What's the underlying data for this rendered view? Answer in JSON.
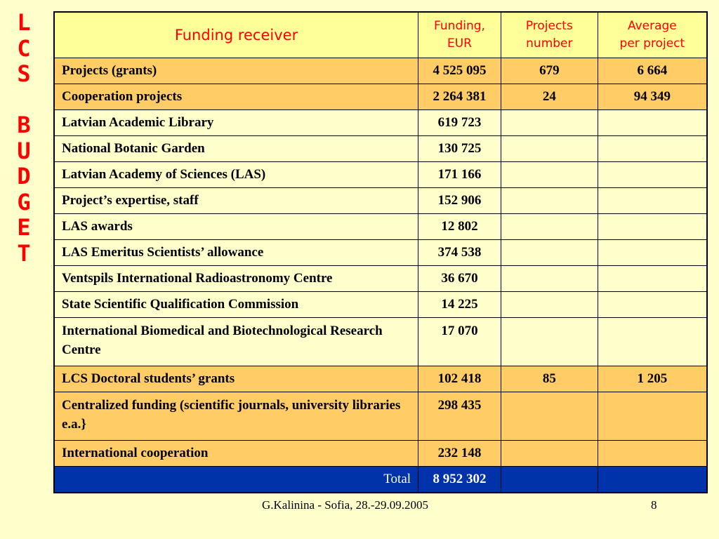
{
  "side_title": [
    "L",
    "C",
    "S",
    "",
    "B",
    "U",
    "D",
    "G",
    "E",
    "T"
  ],
  "table": {
    "headers": {
      "receiver": "Funding receiver",
      "funding_line1": "Funding,",
      "funding_line2": "EUR",
      "projects_line1": "Projects",
      "projects_line2": "number",
      "average_line1": "Average",
      "average_line2": "per project"
    },
    "rows": [
      {
        "name": "Projects (grants)",
        "funding": "4 525 095",
        "projects": "679",
        "average": "6 664"
      },
      {
        "name": "Cooperation projects",
        "funding": "2 264 381",
        "projects": "24",
        "average": "94 349"
      },
      {
        "name": "Latvian Academic Library",
        "funding": "619 723",
        "projects": "",
        "average": ""
      },
      {
        "name": "National Botanic Garden",
        "funding": "130 725",
        "projects": "",
        "average": ""
      },
      {
        "name": "Latvian Academy of Sciences (LAS)",
        "funding": "171 166",
        "projects": "",
        "average": ""
      },
      {
        "name": "Project’s expertise, staff",
        "funding": "152 906",
        "projects": "",
        "average": ""
      },
      {
        "name": "LAS awards",
        "funding": "12 802",
        "projects": "",
        "average": ""
      },
      {
        "name": "LAS Emeritus Scientists’ allowance",
        "funding": "374 538",
        "projects": "",
        "average": ""
      },
      {
        "name": "Ventspils International Radioastronomy Centre",
        "funding": "36 670",
        "projects": "",
        "average": ""
      },
      {
        "name": "State Scientific Qualification Commission",
        "funding": "14 225",
        "projects": "",
        "average": ""
      },
      {
        "name": "International Biomedical and Biotechnological Research Centre",
        "funding": "17 070",
        "projects": "",
        "average": ""
      },
      {
        "name": "LCS Doctoral students’ grants",
        "funding": "102 418",
        "projects": "85",
        "average": "1 205"
      },
      {
        "name": "Centralized funding (scientific journals, university libraries e.a.}",
        "funding": "298 435",
        "projects": "",
        "average": ""
      },
      {
        "name": "International cooperation",
        "funding": "232 148",
        "projects": "",
        "average": ""
      }
    ],
    "total": {
      "label": "Total",
      "funding": "8 952 302",
      "projects": "",
      "average": ""
    }
  },
  "footer": {
    "author": "G.Kalinina - Sofia, 28.-29.09.2005",
    "page": "8"
  },
  "colors": {
    "background": "#ffffcc",
    "header_bg": "#ffff99",
    "header_text": "#ff0000",
    "highlight_row": "#ffcc66",
    "total_row": "#0033aa",
    "side_title": "#ff0000"
  }
}
